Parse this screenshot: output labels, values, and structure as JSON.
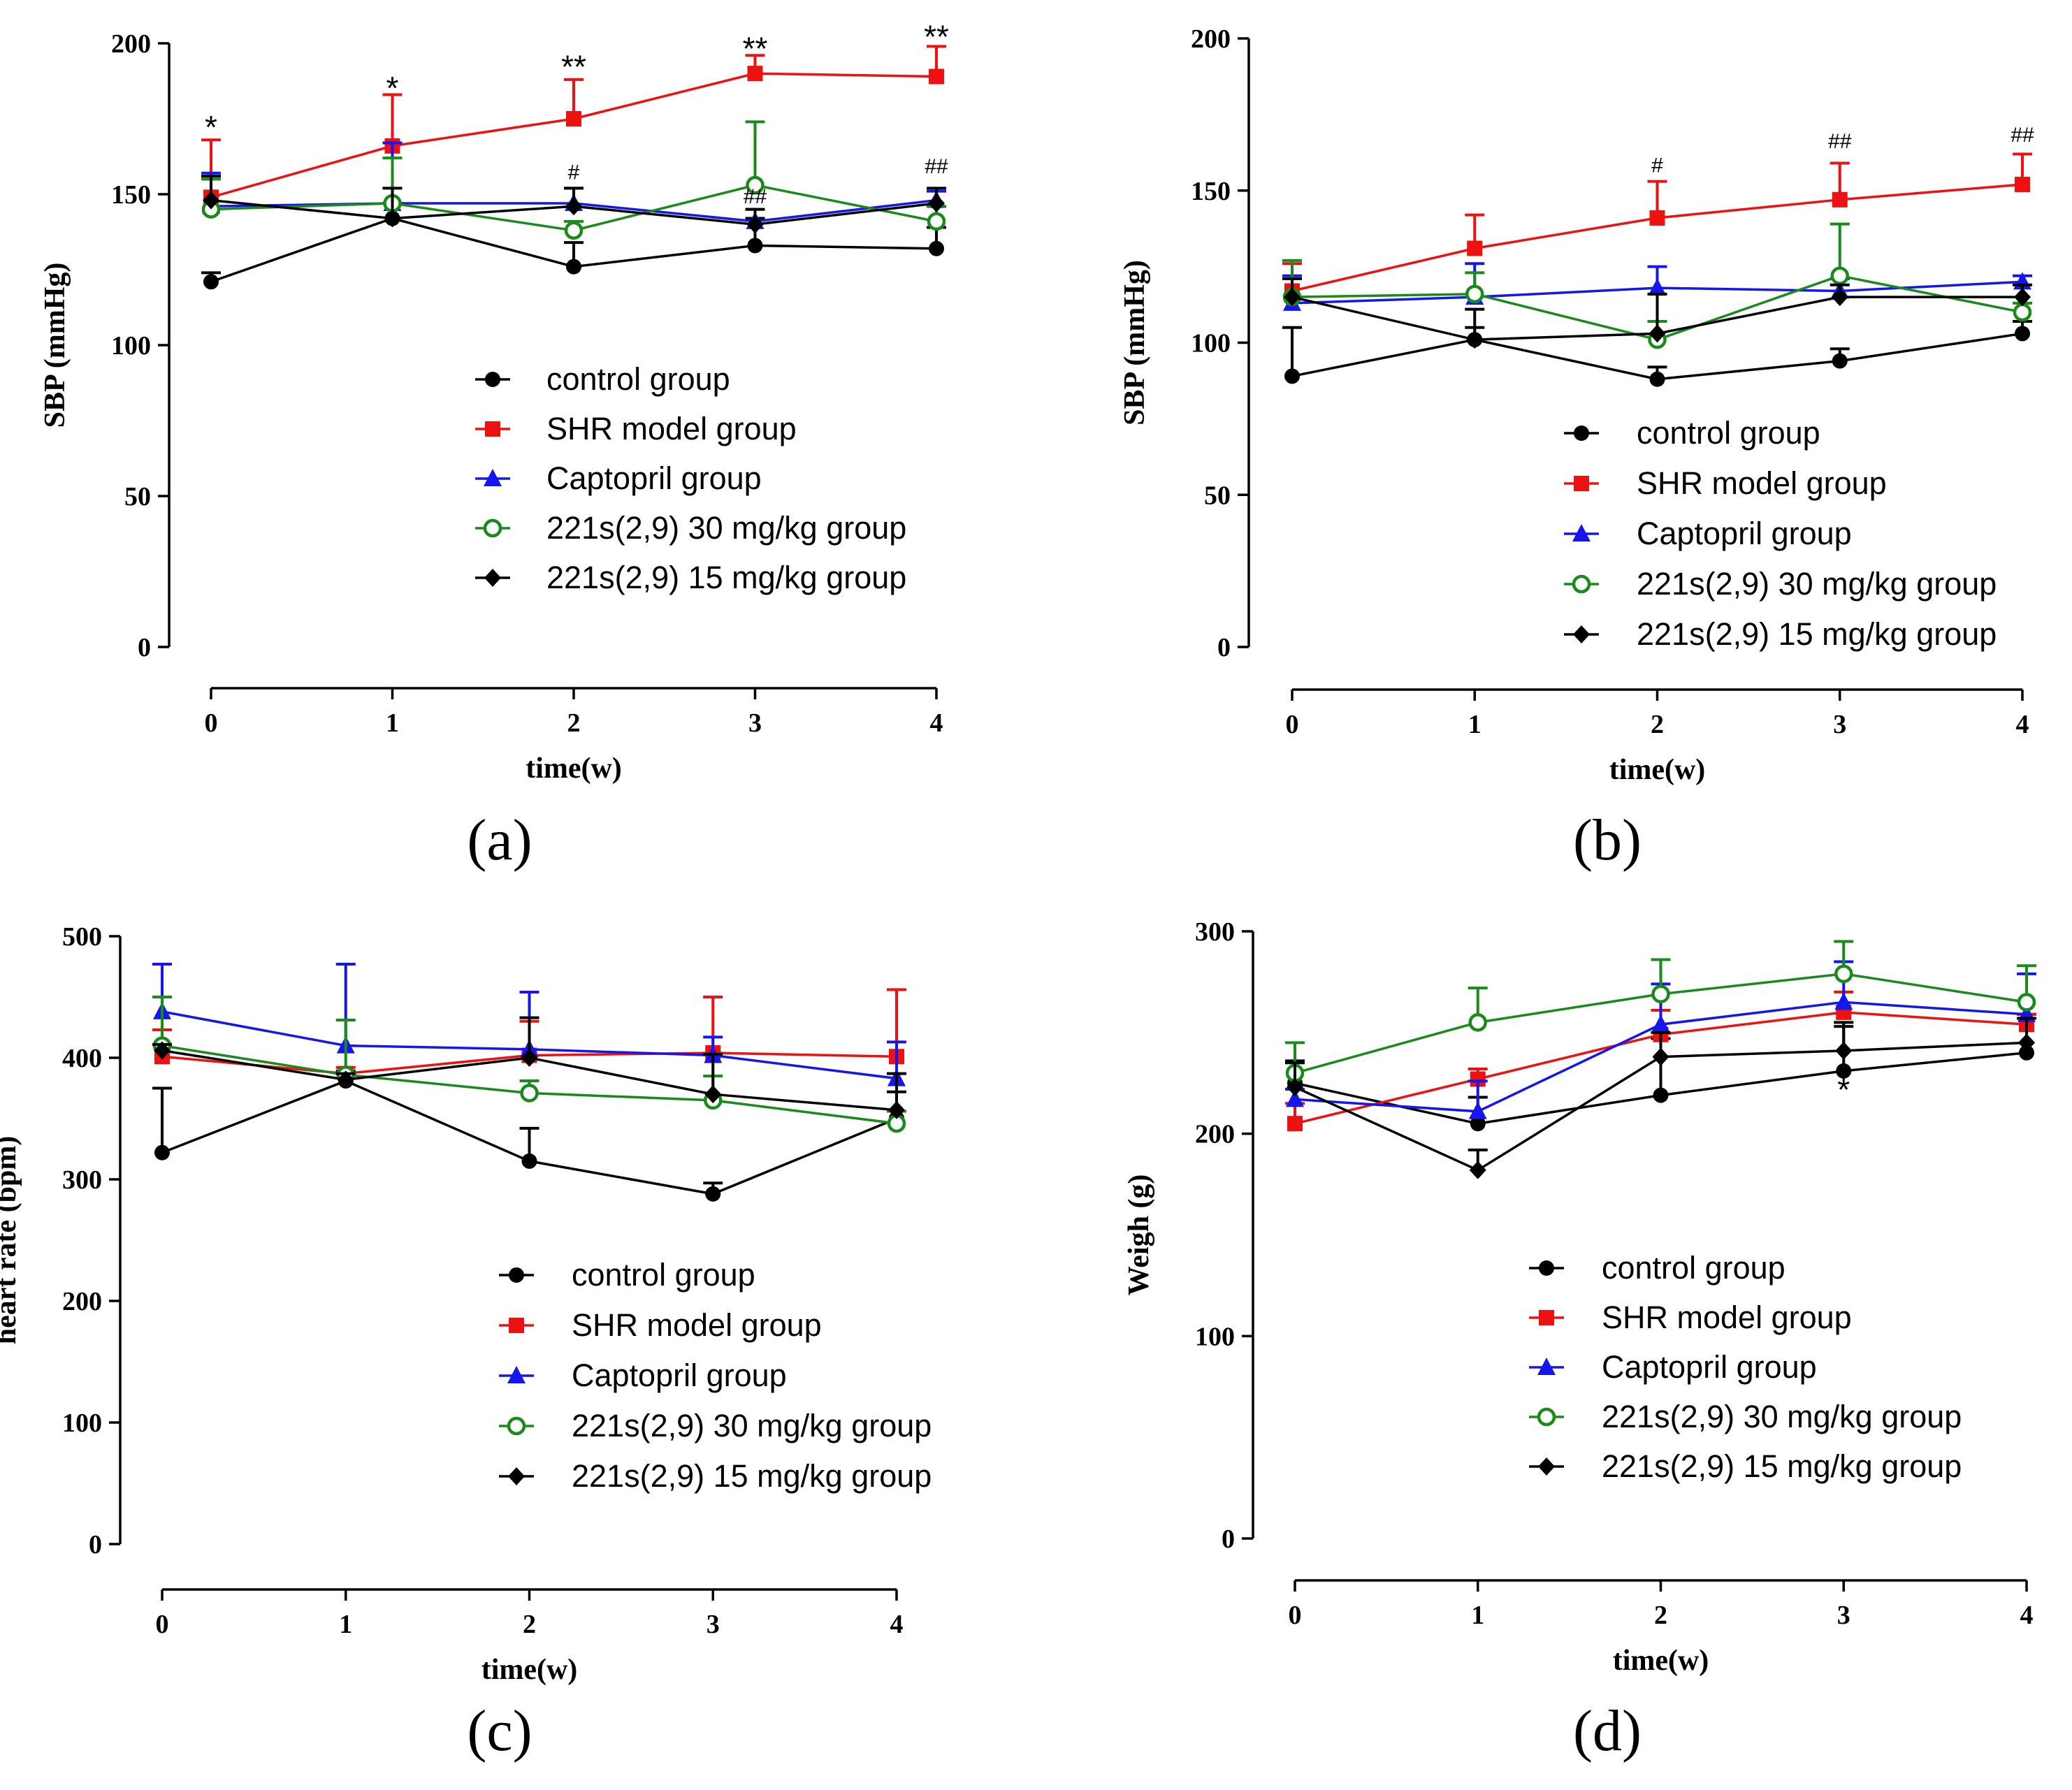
{
  "colors": {
    "control": "#000000",
    "shr": "#ee1111",
    "captopril": "#1515ee",
    "dose30": "#1a8a1a",
    "dose15": "#000000"
  },
  "chart_data": [
    {
      "id": "a",
      "panel_label": "(a)",
      "type": "line",
      "xlabel": "time(w)",
      "ylabel": "SBP (mmHg)",
      "x": [
        0,
        1,
        2,
        3,
        4
      ],
      "xticks": [
        "0",
        "1",
        "2",
        "3",
        "4"
      ],
      "ylim": [
        0,
        200
      ],
      "yticks": [
        0,
        50,
        100,
        150,
        200
      ],
      "series": [
        {
          "key": "control",
          "name": "control group",
          "marker": "circle-filled",
          "values": [
            121,
            142,
            126,
            133,
            132
          ],
          "err": [
            3,
            5,
            8,
            9,
            7
          ]
        },
        {
          "key": "shr",
          "name": "SHR model  group",
          "marker": "square",
          "values": [
            149,
            166,
            175,
            190,
            189
          ],
          "err": [
            19,
            17,
            13,
            6,
            10
          ]
        },
        {
          "key": "captopril",
          "name": "Captopril  group",
          "marker": "triangle",
          "values": [
            146,
            147,
            147,
            141,
            148
          ],
          "err": [
            11,
            20,
            5,
            4,
            3
          ]
        },
        {
          "key": "dose30",
          "name": "221s(2,9) 30 mg/kg  group",
          "marker": "circle-open",
          "values": [
            145,
            147,
            138,
            153,
            141
          ],
          "err": [
            10,
            15,
            3,
            21,
            5
          ]
        },
        {
          "key": "dose15",
          "name": "221s(2,9) 15 mg/kg group",
          "marker": "diamond",
          "values": [
            148,
            142,
            146,
            140,
            147
          ],
          "err": [
            8,
            10,
            6,
            5,
            5
          ]
        }
      ],
      "annotations": [
        {
          "x": 0,
          "y": 175,
          "text": "*"
        },
        {
          "x": 1,
          "y": 188,
          "text": "*"
        },
        {
          "x": 2,
          "y": 195,
          "text": "**"
        },
        {
          "x": 3,
          "y": 201,
          "text": "**"
        },
        {
          "x": 4,
          "y": 205,
          "text": "**"
        },
        {
          "x": 2,
          "y": 155,
          "text": "#"
        },
        {
          "x": 3,
          "y": 147,
          "text": "##"
        },
        {
          "x": 4,
          "y": 157,
          "text": "##"
        }
      ]
    },
    {
      "id": "b",
      "panel_label": "(b)",
      "type": "line",
      "xlabel": "time(w)",
      "ylabel": "SBP (mmHg)",
      "x": [
        0,
        1,
        2,
        3,
        4
      ],
      "xticks": [
        "0",
        "1",
        "2",
        "3",
        "4"
      ],
      "ylim": [
        0,
        200
      ],
      "yticks": [
        0,
        50,
        100,
        150,
        200
      ],
      "series": [
        {
          "key": "control",
          "name": "control group",
          "marker": "circle-filled",
          "values": [
            89,
            101,
            88,
            94,
            103
          ],
          "err": [
            16,
            4,
            4,
            4,
            4
          ]
        },
        {
          "key": "shr",
          "name": "SHR model  group",
          "marker": "square",
          "values": [
            117,
            131,
            141,
            147,
            152
          ],
          "err": [
            9,
            11,
            12,
            12,
            10
          ]
        },
        {
          "key": "captopril",
          "name": "Captopril  group",
          "marker": "triangle",
          "values": [
            113,
            115,
            118,
            117,
            120
          ],
          "err": [
            9,
            11,
            7,
            4,
            2
          ]
        },
        {
          "key": "dose30",
          "name": "221s(2,9) 30 mg/kg  group",
          "marker": "circle-open",
          "values": [
            115,
            116,
            101,
            122,
            110
          ],
          "err": [
            12,
            7,
            6,
            17,
            3
          ]
        },
        {
          "key": "dose15",
          "name": "221s(2,9) 15 mg/kg group",
          "marker": "diamond",
          "values": [
            115,
            101,
            103,
            115,
            115
          ],
          "err": [
            6,
            10,
            13,
            4,
            4
          ]
        }
      ],
      "annotations": [
        {
          "x": 2,
          "y": 156,
          "text": "#"
        },
        {
          "x": 3,
          "y": 164,
          "text": "##"
        },
        {
          "x": 4,
          "y": 166,
          "text": "##"
        }
      ]
    },
    {
      "id": "c",
      "panel_label": "(c)",
      "type": "line",
      "xlabel": "time(w)",
      "ylabel": "heart rate (bpm)",
      "x": [
        0,
        1,
        2,
        3,
        4
      ],
      "xticks": [
        "0",
        "1",
        "2",
        "3",
        "4"
      ],
      "ylim": [
        0,
        500
      ],
      "yticks": [
        0,
        100,
        200,
        300,
        400,
        500
      ],
      "series": [
        {
          "key": "control",
          "name": "control group",
          "marker": "circle-filled",
          "values": [
            322,
            381,
            315,
            288,
            350
          ],
          "err": [
            53,
            8,
            27,
            9,
            22
          ]
        },
        {
          "key": "shr",
          "name": "SHR model group",
          "marker": "square",
          "values": [
            401,
            387,
            402,
            404,
            401
          ],
          "err": [
            22,
            5,
            28,
            46,
            55
          ]
        },
        {
          "key": "captopril",
          "name": "Captopril group",
          "marker": "triangle",
          "values": [
            438,
            410,
            407,
            402,
            383
          ],
          "err": [
            39,
            67,
            47,
            15,
            30
          ]
        },
        {
          "key": "dose30",
          "name": "221s(2,9) 30 mg/kg  group",
          "marker": "circle-open",
          "values": [
            410,
            386,
            371,
            365,
            346
          ],
          "err": [
            40,
            45,
            10,
            20,
            10
          ]
        },
        {
          "key": "dose15",
          "name": "221s(2,9) 15 mg/kg group",
          "marker": "diamond",
          "values": [
            406,
            382,
            400,
            370,
            357
          ],
          "err": [
            5,
            5,
            33,
            33,
            30
          ]
        }
      ],
      "annotations": []
    },
    {
      "id": "d",
      "panel_label": "(d)",
      "type": "line",
      "xlabel": "time(w)",
      "ylabel": "Weigh (g)",
      "x": [
        0,
        1,
        2,
        3,
        4
      ],
      "xticks": [
        "0",
        "1",
        "2",
        "3",
        "4"
      ],
      "ylim": [
        0,
        300
      ],
      "yticks": [
        0,
        100,
        200,
        300
      ],
      "series": [
        {
          "key": "control",
          "name": "control group",
          "marker": "circle-filled",
          "values": [
            225,
            205,
            219,
            231,
            240
          ],
          "err": [
            11,
            13,
            28,
            24,
            19
          ]
        },
        {
          "key": "shr",
          "name": "SHR model group",
          "marker": "square",
          "values": [
            205,
            227,
            249,
            260,
            254
          ],
          "err": [
            10,
            5,
            12,
            10,
            5
          ]
        },
        {
          "key": "captopril",
          "name": "Captopril group",
          "marker": "triangle",
          "values": [
            217,
            211,
            254,
            265,
            259
          ],
          "err": [
            5,
            15,
            20,
            20,
            20
          ]
        },
        {
          "key": "dose30",
          "name": "221s(2,9) 30 mg/kg  group",
          "marker": "circle-open",
          "values": [
            230,
            255,
            269,
            279,
            265
          ],
          "err": [
            15,
            17,
            17,
            16,
            18
          ]
        },
        {
          "key": "dose15",
          "name": "221s(2,9) 15 mg/kg group",
          "marker": "diamond",
          "values": [
            223,
            182,
            238,
            241,
            245
          ],
          "err": [
            12,
            10,
            12,
            12,
            12
          ]
        }
      ],
      "annotations": [
        {
          "x": 3,
          "y": 226,
          "text": "*"
        }
      ]
    }
  ]
}
